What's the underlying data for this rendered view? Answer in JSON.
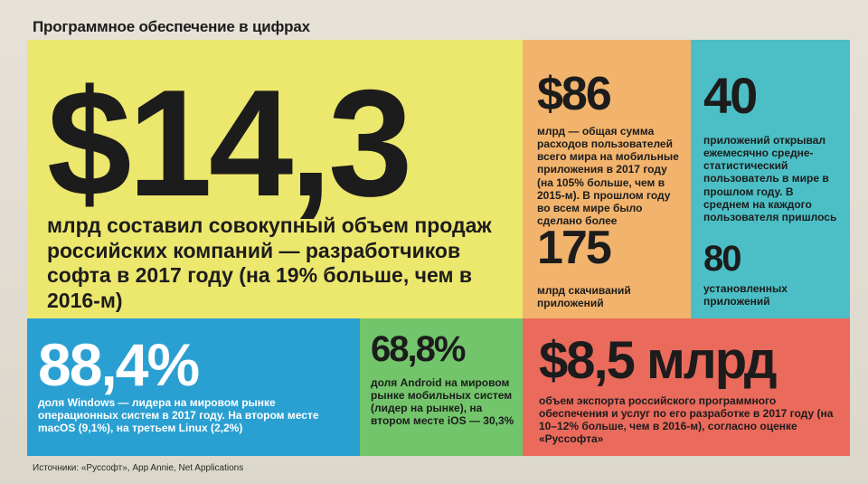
{
  "title": "Программное обеспечение в цифрах",
  "yellow": {
    "big": "$14,3",
    "text": "млрд составил совокупный объем продаж российских компаний — разработчиков софта в 2017 году (на 19% больше, чем в 2016-м)"
  },
  "orange": {
    "big1": "$86",
    "text1": "млрд — общая сумма расходов пользователей всего мира на мобильные приложения в 2017 году (на 105% больше, чем в 2015-м). В прошлом году во всем мире было сделано более",
    "big2": "175",
    "text2": "млрд скачиваний приложений"
  },
  "teal": {
    "big1": "40",
    "text1": "приложений открывал ежемесячно средне-статистический пользователь в мире в прошлом году. В среднем на каждого пользователя пришлось",
    "big2": "80",
    "text2": "установленных приложений"
  },
  "blue": {
    "big": "88,4%",
    "text": "доля Windows — лидера на мировом рынке операционных систем в 2017 году. На втором месте macOS (9,1%), на третьем Linux (2,2%)"
  },
  "green": {
    "big": "68,8%",
    "text": "доля Android на мировом рынке мобильных систем (лидер на рынке), на втором месте iOS — 30,3%"
  },
  "red": {
    "big": "$8,5 млрд",
    "text": "объем экспорта российского программного обеспечения и услуг по его разработке в 2017 году (на 10–12% больше, чем в 2016-м), согласно оценке «Руссофта»"
  },
  "sources": "Источники: «Руссофт», App Annie, Net Applications",
  "colors": {
    "yellow": "#ece76d",
    "orange": "#f2b36d",
    "teal": "#4bbfc5",
    "blue": "#2aa0d2",
    "green": "#72c56b",
    "red": "#ea6a5c"
  }
}
